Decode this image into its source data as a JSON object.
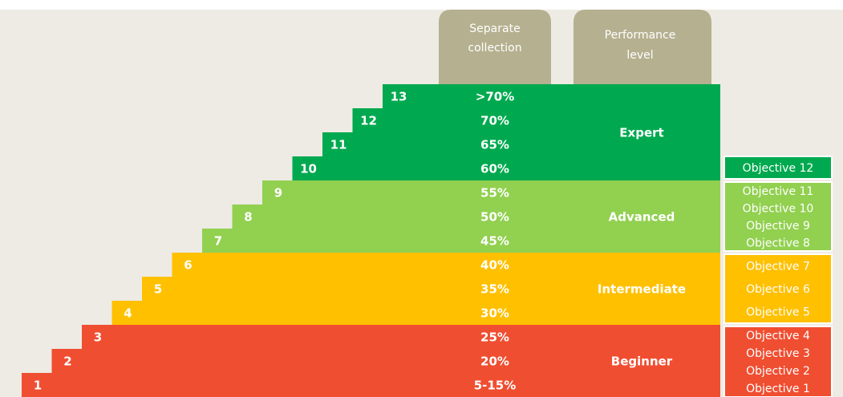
{
  "header": {
    "collection": [
      "Separate",
      "collection"
    ],
    "level": [
      "Performance",
      "level"
    ]
  },
  "levels": [
    {
      "label": "Expert",
      "color": "#00a94f",
      "rows": [
        {
          "step": 13,
          "percent": ">70%"
        },
        {
          "step": 12,
          "percent": "70%"
        },
        {
          "step": 11,
          "percent": "65%"
        },
        {
          "step": 10,
          "percent": "60%"
        }
      ],
      "objectives": [
        "Objective 12"
      ]
    },
    {
      "label": "Advanced",
      "color": "#92d050",
      "rows": [
        {
          "step": 9,
          "percent": "55%"
        },
        {
          "step": 8,
          "percent": "50%"
        },
        {
          "step": 7,
          "percent": "45%"
        }
      ],
      "objectives": [
        "Objective 11",
        "Objective 10",
        "Objective 9",
        "Objective 8"
      ]
    },
    {
      "label": "Intermediate",
      "color": "#ffc000",
      "rows": [
        {
          "step": 6,
          "percent": "40%"
        },
        {
          "step": 5,
          "percent": "35%"
        },
        {
          "step": 4,
          "percent": "30%"
        }
      ],
      "objectives": [
        "Objective 7",
        "Objective 6",
        "Objective 5"
      ]
    },
    {
      "label": "Beginner",
      "color": "#f04e31",
      "rows": [
        {
          "step": 3,
          "percent": "25%"
        },
        {
          "step": 2,
          "percent": "20%"
        },
        {
          "step": 1,
          "percent": "5-15%"
        }
      ],
      "objectives": [
        "Objective 4",
        "Objective 3",
        "Objective 2",
        "Objective 1"
      ]
    }
  ]
}
